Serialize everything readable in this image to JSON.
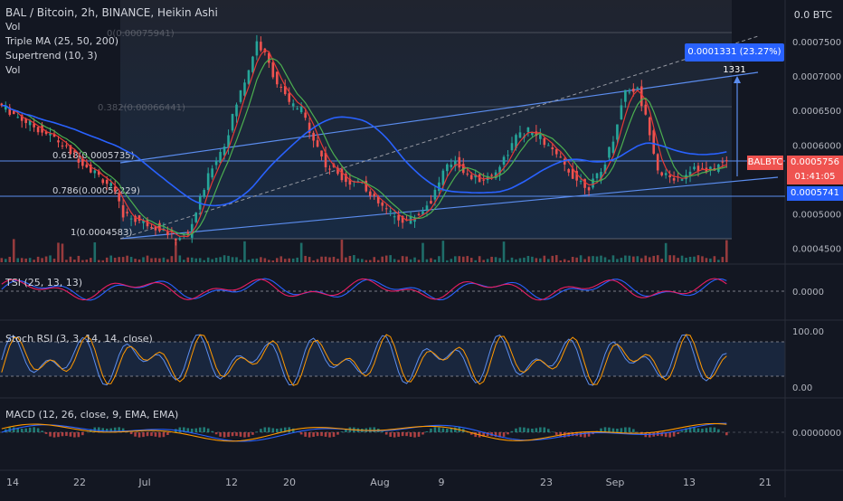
{
  "header": {
    "title": "BAL / Bitcoin, 2h, BINANCE, Heikin Ashi",
    "indicators": [
      "Vol",
      "Triple MA (25, 50, 200)",
      "Supertrend (10, 3)",
      "Vol"
    ],
    "currency_badge": "0.0 BTC"
  },
  "fib": {
    "top_label": "0(0.00075941)",
    "mid_label": "0.382(0.00066441)",
    "label_618": "0.618(0.0005735)",
    "label_786": "0.786(0.00052229)",
    "label_1": "1(0.0004583)"
  },
  "measure": {
    "label": "0.0001331 (23.27%) 1331"
  },
  "symbol_tag": "BALBTC",
  "last_price": "0.0005756",
  "countdown": "01:41:05",
  "prev_price": "0.0005741",
  "panes": {
    "tsi": {
      "label": "TSI (25, 13, 13)",
      "axis": [
        "0.0000"
      ]
    },
    "stoch": {
      "label": "Stoch RSI (3, 3, 14, 14, close)",
      "axis": [
        "100.00",
        "0.00"
      ]
    },
    "macd": {
      "label": "MACD (12, 26, close, 9, EMA, EMA)",
      "axis": [
        "0.0000000"
      ]
    }
  },
  "colors": {
    "background": "#131722",
    "candle_up": "#26a69a",
    "candle_down": "#ef5350",
    "ma_fast": "#e53935",
    "ma_mid": "#4caf50",
    "ma_slow": "#2962ff",
    "channel": "#5b8def",
    "tsi_main": "#2962ff",
    "tsi_signal": "#e91e63",
    "stoch_k": "#5b8def",
    "stoch_d": "#ff9800"
  },
  "chart_data": {
    "type": "candlestick",
    "price_axis": [
      "0.0007500",
      "0.0007000",
      "0.0006500",
      "0.0006000",
      "0.0005500",
      "0.0005000",
      "0.0004500"
    ],
    "price_range": [
      0.00043,
      0.00081
    ],
    "time_axis": [
      "14",
      "22",
      "Jul",
      "12",
      "20",
      "Aug",
      "9",
      "23",
      "Sep",
      "13",
      "21"
    ],
    "price_path": [
      [
        0,
        0.00066
      ],
      [
        8,
        0.00063
      ],
      [
        14,
        0.00061
      ],
      [
        20,
        0.00058
      ],
      [
        24,
        0.00056
      ],
      [
        28,
        0.00054
      ],
      [
        31,
        0.0005
      ],
      [
        35,
        0.00049
      ],
      [
        40,
        0.00048
      ],
      [
        44,
        0.000465
      ],
      [
        47,
        0.00047
      ],
      [
        50,
        0.00052
      ],
      [
        53,
        0.00057
      ],
      [
        56,
        0.0006
      ],
      [
        59,
        0.00066
      ],
      [
        62,
        0.00071
      ],
      [
        64,
        0.00075
      ],
      [
        66,
        0.00073
      ],
      [
        69,
        0.00069
      ],
      [
        72,
        0.00066
      ],
      [
        75,
        0.00065
      ],
      [
        78,
        0.00061
      ],
      [
        81,
        0.00057
      ],
      [
        84,
        0.00056
      ],
      [
        87,
        0.000545
      ],
      [
        90,
        0.00055
      ],
      [
        92,
        0.000525
      ],
      [
        95,
        0.00051
      ],
      [
        98,
        0.000495
      ],
      [
        101,
        0.00049
      ],
      [
        104,
        0.0005
      ],
      [
        107,
        0.00052
      ],
      [
        110,
        0.00056
      ],
      [
        113,
        0.00058
      ],
      [
        116,
        0.000555
      ],
      [
        119,
        0.00055
      ],
      [
        122,
        0.000555
      ],
      [
        125,
        0.00058
      ],
      [
        128,
        0.00061
      ],
      [
        131,
        0.00062
      ],
      [
        134,
        0.00061
      ],
      [
        137,
        0.00059
      ],
      [
        140,
        0.00057
      ],
      [
        143,
        0.00055
      ],
      [
        146,
        0.00054
      ],
      [
        149,
        0.00056
      ],
      [
        152,
        0.00061
      ],
      [
        155,
        0.00068
      ],
      [
        158,
        0.00068
      ],
      [
        161,
        0.00062
      ],
      [
        163,
        0.000565
      ],
      [
        166,
        0.00055
      ],
      [
        169,
        0.000555
      ],
      [
        172,
        0.00057
      ],
      [
        175,
        0.00056
      ],
      [
        178,
        0.00057
      ],
      [
        180,
        0.0005756
      ]
    ],
    "candle_count": 180,
    "tsi_axis_value": 0,
    "stoch_levels": [
      80,
      20
    ],
    "stoch_range": [
      0,
      100
    ],
    "macd_axis_value": 0
  }
}
